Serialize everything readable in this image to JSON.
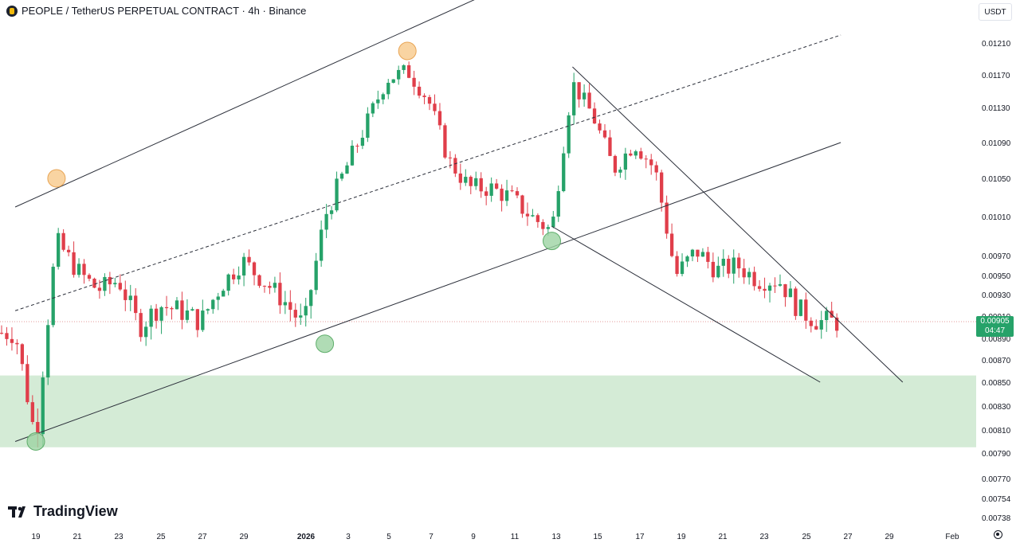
{
  "header": {
    "title": "PEOPLE / TetherUS PERPETUAL CONTRACT · 4h · Binance"
  },
  "currency": "USDT",
  "brand": "TradingView",
  "last_price": {
    "value": "0.00905",
    "countdown": "04:47"
  },
  "colors": {
    "up": "#26a269",
    "down": "#e03e4a",
    "zone": "#d4ebd6",
    "buy_marker": "#9cd3a3",
    "sell_marker": "#f7c98b",
    "line": "#2a2e39"
  },
  "chart_data": {
    "type": "candlestick",
    "symbol": "PEOPLE / TetherUS PERPETUAL CONTRACT",
    "timeframe": "4h",
    "exchange": "Binance",
    "y_axis_labels": [
      "0.01210",
      "0.01170",
      "0.01130",
      "0.01090",
      "0.01050",
      "0.01010",
      "0.00970",
      "0.00950",
      "0.00930",
      "0.00910",
      "0.00890",
      "0.00870",
      "0.00850",
      "0.00830",
      "0.00810",
      "0.00790",
      "0.00770",
      "0.00754",
      "0.00738"
    ],
    "x_axis_labels": [
      "19",
      "21",
      "23",
      "25",
      "27",
      "29",
      "2026",
      "3",
      "5",
      "7",
      "9",
      "11",
      "13",
      "15",
      "17",
      "19",
      "21",
      "23",
      "25",
      "27",
      "29",
      "Feb"
    ],
    "last_price": 0.00905,
    "support_zone": [
      0.00795,
      0.00856
    ],
    "candle_path": [
      [
        "2025-12-18",
        0.00895
      ],
      [
        "2025-12-19",
        0.008
      ],
      [
        "2025-12-20",
        0.00985
      ],
      [
        "2025-12-21",
        0.00955
      ],
      [
        "2025-12-22",
        0.00935
      ],
      [
        "2025-12-23",
        0.00945
      ],
      [
        "2025-12-24",
        0.009
      ],
      [
        "2025-12-25",
        0.0092
      ],
      [
        "2025-12-26",
        0.00915
      ],
      [
        "2025-12-27",
        0.00905
      ],
      [
        "2025-12-28",
        0.0094
      ],
      [
        "2025-12-29",
        0.00965
      ],
      [
        "2025-12-30",
        0.00945
      ],
      [
        "2025-12-31",
        0.00925
      ],
      [
        "2026-01-01",
        0.009
      ],
      [
        "2026-01-02",
        0.0101
      ],
      [
        "2026-01-03",
        0.0106
      ],
      [
        "2026-01-04",
        0.0111
      ],
      [
        "2026-01-05",
        0.01165
      ],
      [
        "2026-01-06",
        0.01175
      ],
      [
        "2026-01-07",
        0.0114
      ],
      [
        "2026-01-08",
        0.0107
      ],
      [
        "2026-01-09",
        0.0104
      ],
      [
        "2026-01-10",
        0.0104
      ],
      [
        "2026-01-11",
        0.0103
      ],
      [
        "2026-01-12",
        0.0101
      ],
      [
        "2026-01-13",
        0.00995
      ],
      [
        "2026-01-14",
        0.0116
      ],
      [
        "2026-01-15",
        0.0112
      ],
      [
        "2026-01-16",
        0.0106
      ],
      [
        "2026-01-17",
        0.0109
      ],
      [
        "2026-01-18",
        0.0106
      ],
      [
        "2026-01-19",
        0.0095
      ],
      [
        "2026-01-20",
        0.00975
      ],
      [
        "2026-01-21",
        0.00955
      ],
      [
        "2026-01-22",
        0.0096
      ],
      [
        "2026-01-23",
        0.00945
      ],
      [
        "2026-01-24",
        0.00945
      ],
      [
        "2026-01-25",
        0.00915
      ],
      [
        "2026-01-26",
        0.00905
      ]
    ],
    "markers": [
      {
        "type": "sell",
        "x": "2025-12-20",
        "y": 0.0105
      },
      {
        "type": "sell",
        "x": "2026-01-06",
        "y": 0.012
      },
      {
        "type": "buy",
        "x": "2025-12-19",
        "y": 0.008
      },
      {
        "type": "buy",
        "x": "2026-01-02",
        "y": 0.00885
      },
      {
        "type": "buy",
        "x": "2026-01-13",
        "y": 0.00985
      }
    ],
    "trendlines": [
      {
        "name": "upper channel",
        "from": [
          "2025-12-18",
          0.0102
        ],
        "to": [
          "2026-01-14",
          0.0132
        ],
        "style": "solid"
      },
      {
        "name": "mid channel",
        "from": [
          "2025-12-18",
          0.00915
        ],
        "to": [
          "2026-01-27",
          0.0122
        ],
        "style": "dashed"
      },
      {
        "name": "lower channel",
        "from": [
          "2025-12-18",
          0.008
        ],
        "to": [
          "2026-01-27",
          0.0109
        ],
        "style": "solid"
      },
      {
        "name": "wedge resistance",
        "from": [
          "2026-01-14",
          0.0118
        ],
        "to": [
          "2026-01-30",
          0.0085
        ],
        "style": "solid"
      },
      {
        "name": "wedge support",
        "from": [
          "2026-01-13",
          0.01
        ],
        "to": [
          "2026-01-26",
          0.0085
        ],
        "style": "solid"
      }
    ]
  }
}
